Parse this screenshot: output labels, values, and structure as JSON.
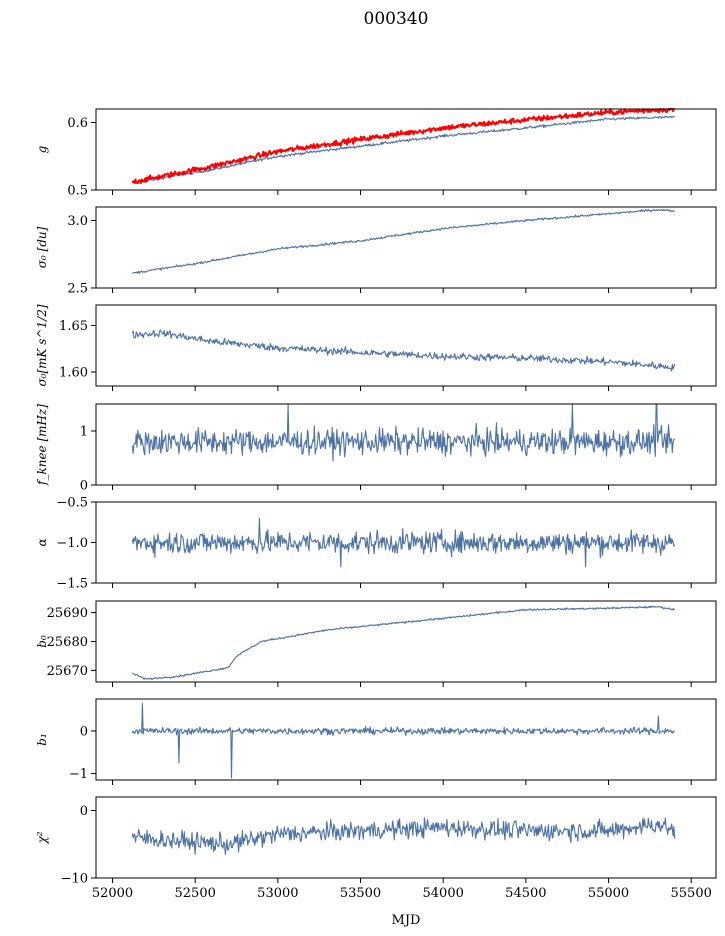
{
  "figure": {
    "title": "000340"
  },
  "colors": {
    "series": "#4c72a4",
    "model": "#ff0000"
  },
  "chart_data": [
    {
      "type": "line",
      "panel_id": "g",
      "ylabel": "g",
      "x_range": [
        51900,
        55650
      ],
      "ylim": [
        0.5,
        0.62
      ],
      "yticks": [
        0.5,
        0.6
      ],
      "series": [
        {
          "shape": "drift",
          "color": "#4c72a4",
          "x_start": 52120,
          "x_end": 55400,
          "anchors": [
            [
              52120,
              0.51
            ],
            [
              52300,
              0.518
            ],
            [
              52600,
              0.53
            ],
            [
              53000,
              0.55
            ],
            [
              53500,
              0.565
            ],
            [
              54000,
              0.58
            ],
            [
              54500,
              0.592
            ],
            [
              55000,
              0.605
            ],
            [
              55400,
              0.608
            ]
          ],
          "noise": 0.001
        },
        {
          "shape": "drift",
          "color": "#ff0000",
          "x_start": 52120,
          "x_end": 55400,
          "anchors": [
            [
              52120,
              0.512
            ],
            [
              52300,
              0.52
            ],
            [
              52600,
              0.535
            ],
            [
              53000,
              0.557
            ],
            [
              53500,
              0.575
            ],
            [
              54000,
              0.592
            ],
            [
              54500,
              0.604
            ],
            [
              55000,
              0.615
            ],
            [
              55400,
              0.62
            ]
          ],
          "noise": 0.002,
          "width": 2
        }
      ]
    },
    {
      "type": "line",
      "panel_id": "sigma0-du",
      "ylabel": "σ₀ [du]",
      "x_range": [
        51900,
        55650
      ],
      "ylim": [
        2.5,
        3.1
      ],
      "yticks": [
        2.5,
        3.0
      ],
      "series": [
        {
          "shape": "drift",
          "color": "#4c72a4",
          "x_start": 52120,
          "x_end": 55400,
          "anchors": [
            [
              52120,
              2.61
            ],
            [
              52500,
              2.68
            ],
            [
              53000,
              2.79
            ],
            [
              53500,
              2.85
            ],
            [
              54000,
              2.94
            ],
            [
              54500,
              3.0
            ],
            [
              55000,
              3.05
            ],
            [
              55300,
              3.08
            ],
            [
              55400,
              3.07
            ]
          ],
          "noise": 0.004
        }
      ]
    },
    {
      "type": "line",
      "panel_id": "sigma0-mks",
      "ylabel": "σ₀[mK s^1/2]",
      "x_range": [
        51900,
        55650
      ],
      "ylim": [
        1.585,
        1.672
      ],
      "yticks": [
        1.6,
        1.65
      ],
      "series": [
        {
          "shape": "drift",
          "color": "#4c72a4",
          "x_start": 52120,
          "x_end": 55400,
          "anchors": [
            [
              52120,
              1.64
            ],
            [
              52300,
              1.642
            ],
            [
              52600,
              1.633
            ],
            [
              53000,
              1.626
            ],
            [
              53500,
              1.621
            ],
            [
              54000,
              1.617
            ],
            [
              54500,
              1.615
            ],
            [
              55000,
              1.611
            ],
            [
              55400,
              1.605
            ]
          ],
          "noise": 0.002
        }
      ]
    },
    {
      "type": "line",
      "panel_id": "fknee",
      "ylabel": "f_knee [mHz]",
      "x_range": [
        51900,
        55650
      ],
      "ylim": [
        0,
        1.5
      ],
      "yticks": [
        0,
        1
      ],
      "series": [
        {
          "shape": "noise",
          "color": "#4c72a4",
          "x_start": 52120,
          "x_end": 55400,
          "mean": 0.8,
          "sd": 0.12,
          "spikes": [
            [
              53060,
              1.5
            ],
            [
              54780,
              1.5
            ],
            [
              55290,
              1.5
            ]
          ]
        }
      ]
    },
    {
      "type": "line",
      "panel_id": "alpha",
      "ylabel": "α",
      "x_range": [
        51900,
        55650
      ],
      "ylim": [
        -1.5,
        -0.5
      ],
      "yticks": [
        -1.5,
        -1.0,
        -0.5
      ],
      "series": [
        {
          "shape": "noise",
          "color": "#4c72a4",
          "x_start": 52120,
          "x_end": 55400,
          "mean": -1.0,
          "sd": 0.07,
          "spikes": [
            [
              52890,
              -0.7
            ],
            [
              53380,
              -1.3
            ],
            [
              54860,
              -1.3
            ]
          ]
        }
      ]
    },
    {
      "type": "line",
      "panel_id": "b0",
      "ylabel": "b₀",
      "x_range": [
        51900,
        55650
      ],
      "ylim": [
        25666,
        25694
      ],
      "yticks": [
        25670,
        25680,
        25690
      ],
      "series": [
        {
          "shape": "drift",
          "color": "#4c72a4",
          "x_start": 52120,
          "x_end": 55400,
          "anchors": [
            [
              52120,
              25669
            ],
            [
              52200,
              25667
            ],
            [
              52400,
              25668
            ],
            [
              52700,
              25671
            ],
            [
              52750,
              25675
            ],
            [
              52900,
              25680
            ],
            [
              53300,
              25684
            ],
            [
              54000,
              25688
            ],
            [
              54500,
              25691
            ],
            [
              55000,
              25691.5
            ],
            [
              55300,
              25692
            ],
            [
              55400,
              25691
            ]
          ],
          "noise": 0.15
        }
      ]
    },
    {
      "type": "line",
      "panel_id": "b1",
      "ylabel": "b₁",
      "x_range": [
        51900,
        55650
      ],
      "ylim": [
        -1.15,
        0.75
      ],
      "yticks": [
        -1,
        0
      ],
      "series": [
        {
          "shape": "noise",
          "color": "#4c72a4",
          "x_start": 52120,
          "x_end": 55400,
          "mean": 0.0,
          "sd": 0.04,
          "spikes": [
            [
              52180,
              0.65
            ],
            [
              52400,
              -0.75
            ],
            [
              52720,
              -1.1
            ],
            [
              55300,
              0.35
            ]
          ]
        }
      ]
    },
    {
      "type": "line",
      "panel_id": "chi2",
      "ylabel": "χ²",
      "x_range": [
        51900,
        55650
      ],
      "ylim": [
        -10,
        2
      ],
      "yticks": [
        -10,
        0
      ],
      "series": [
        {
          "shape": "drift",
          "color": "#4c72a4",
          "x_start": 52120,
          "x_end": 55400,
          "anchors": [
            [
              52120,
              -4
            ],
            [
              52400,
              -4.5
            ],
            [
              52700,
              -5
            ],
            [
              53000,
              -3.5
            ],
            [
              53500,
              -3
            ],
            [
              54000,
              -2.5
            ],
            [
              54500,
              -3
            ],
            [
              55000,
              -3
            ],
            [
              55300,
              -2
            ],
            [
              55400,
              -3
            ]
          ],
          "noise": 0.7
        }
      ]
    }
  ],
  "x_axis": {
    "label": "MJD",
    "ticks": [
      52000,
      52500,
      53000,
      53500,
      54000,
      54500,
      55000,
      55500
    ]
  }
}
